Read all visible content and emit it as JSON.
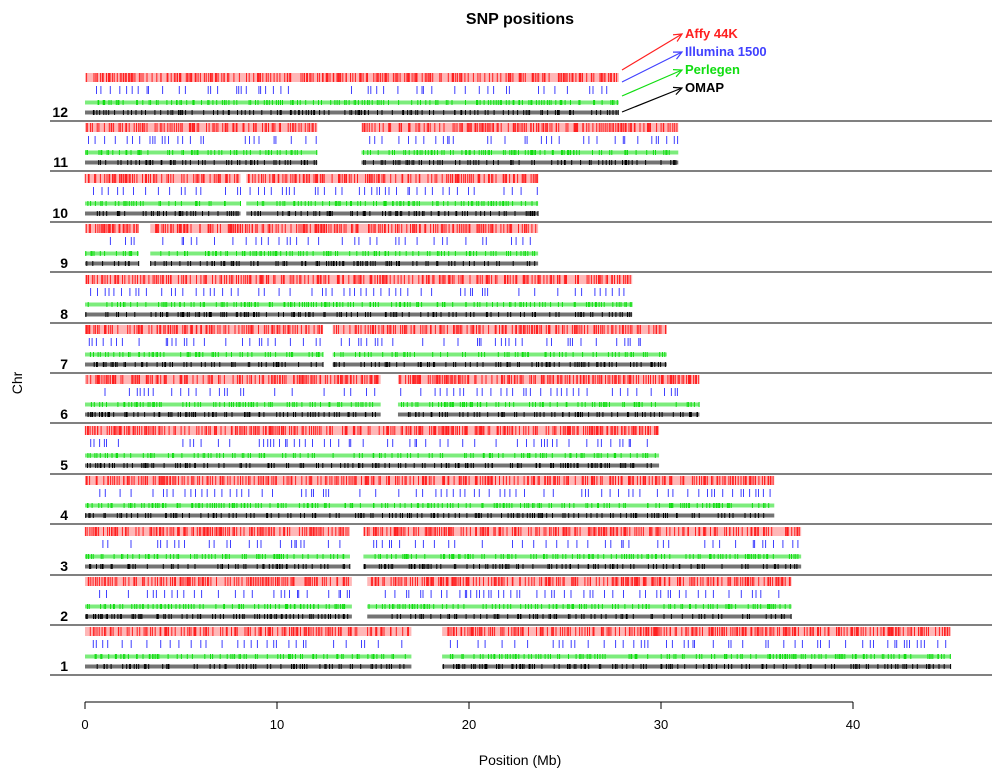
{
  "chart_data": {
    "type": "strip",
    "title": "SNP positions",
    "xlabel": "Position (Mb)",
    "ylabel": "Chr",
    "xlim": [
      0,
      47
    ],
    "xticks": [
      0,
      10,
      20,
      30,
      40
    ],
    "legend_position": "top-right",
    "series": [
      {
        "name": "Affy 44K",
        "color": "#ff2020"
      },
      {
        "name": "Illumina 1500",
        "color": "#4040ff"
      },
      {
        "name": "Perlegen",
        "color": "#10dd10"
      },
      {
        "name": "OMAP",
        "color": "#000000"
      }
    ],
    "chromosomes": [
      {
        "label": "12",
        "length": 27.8,
        "gaps": []
      },
      {
        "label": "11",
        "length": 30.9,
        "gaps": [
          [
            12.1,
            14.4
          ]
        ]
      },
      {
        "label": "10",
        "length": 23.6,
        "gaps": [
          [
            8.1,
            8.4
          ]
        ]
      },
      {
        "label": "9",
        "length": 23.6,
        "gaps": [
          [
            2.8,
            3.4
          ]
        ]
      },
      {
        "label": "8",
        "length": 28.5,
        "gaps": []
      },
      {
        "label": "7",
        "length": 30.3,
        "gaps": [
          [
            12.4,
            12.9
          ]
        ]
      },
      {
        "label": "6",
        "length": 32.0,
        "gaps": [
          [
            15.4,
            16.3
          ]
        ]
      },
      {
        "label": "5",
        "length": 29.9,
        "gaps": []
      },
      {
        "label": "4",
        "length": 35.9,
        "gaps": []
      },
      {
        "label": "3",
        "length": 37.3,
        "gaps": [
          [
            13.8,
            14.5
          ]
        ]
      },
      {
        "label": "2",
        "length": 36.8,
        "gaps": [
          [
            13.9,
            14.7
          ]
        ]
      },
      {
        "label": "1",
        "length": 45.1,
        "gaps": [
          [
            17.0,
            18.6
          ]
        ]
      }
    ]
  }
}
